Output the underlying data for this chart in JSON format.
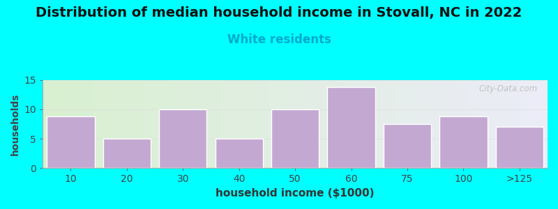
{
  "title": "Distribution of median household income in Stovall, NC in 2022",
  "subtitle": "White residents",
  "xlabel": "household income ($1000)",
  "ylabel": "households",
  "categories": [
    "10",
    "20",
    "30",
    "40",
    "50",
    "60",
    "75",
    "100",
    ">125"
  ],
  "values": [
    8.8,
    5.0,
    10.0,
    5.0,
    10.0,
    13.7,
    7.5,
    8.8,
    7.0
  ],
  "bar_color": "#C3A8D1",
  "bar_edge_color": "#ffffff",
  "background_color": "#00FFFF",
  "plot_bg_left": "#d8f0d0",
  "plot_bg_right": "#ececf8",
  "title_fontsize": 14,
  "subtitle_fontsize": 12,
  "subtitle_color": "#00AACC",
  "ylabel_fontsize": 10,
  "xlabel_fontsize": 11,
  "ylim": [
    0,
    15
  ],
  "yticks": [
    0,
    5,
    10,
    15
  ],
  "watermark": "City-Data.com"
}
